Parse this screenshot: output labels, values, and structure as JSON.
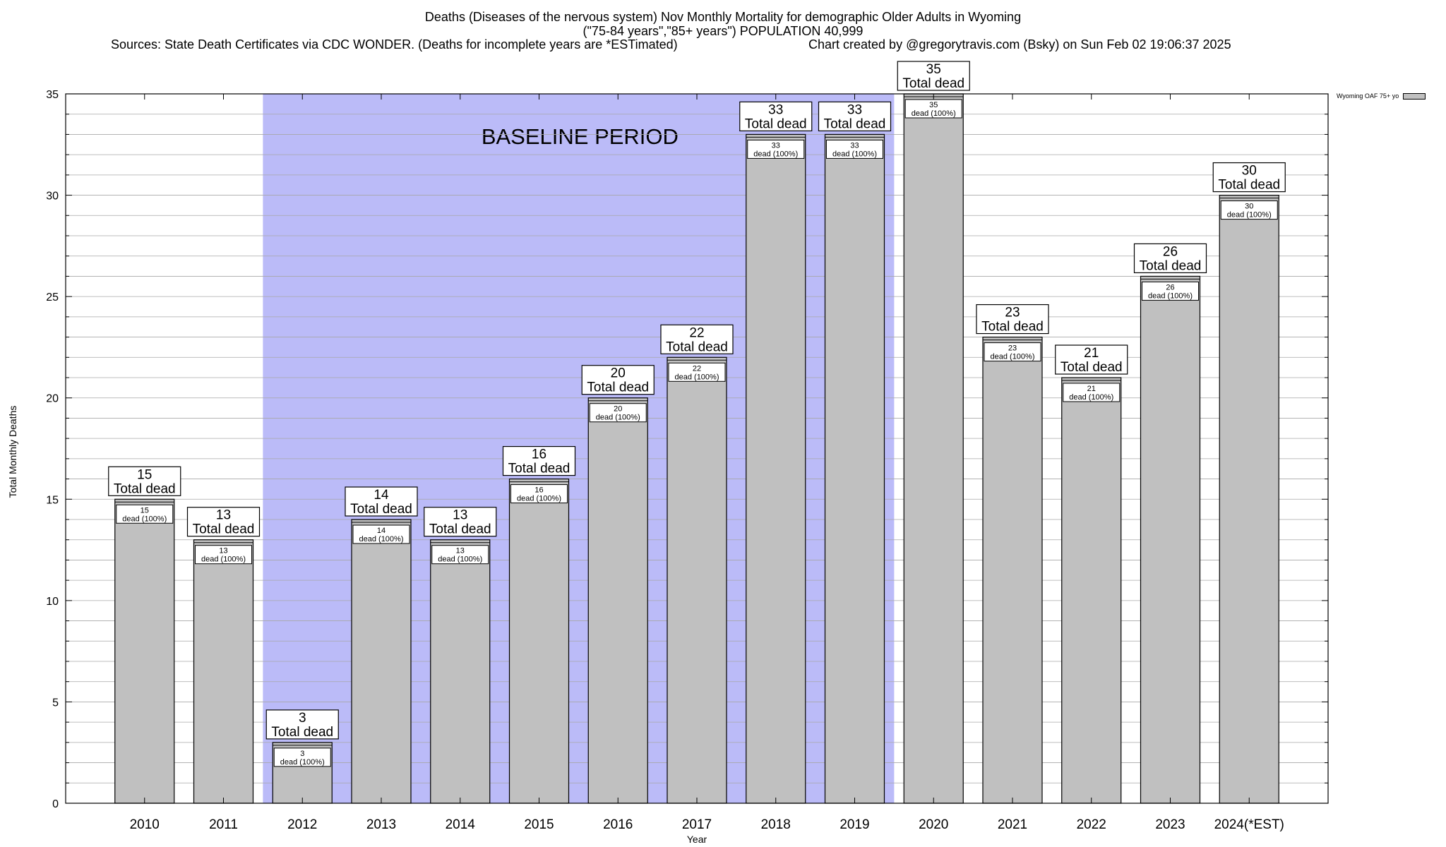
{
  "titles": {
    "line1": "Deaths (Diseases of the nervous system) Nov Monthly Mortality for demographic Older Adults in Wyoming",
    "line2": "(\"75-84 years\",\"85+ years\") POPULATION 40,999",
    "sources": "Sources: State Death Certificates via CDC WONDER. (Deaths for incomplete years are *ESTimated)",
    "credit": "Chart created by @gregorytravis.com (Bsky) on Sun Feb 02 19:06:37 2025"
  },
  "chart_data": {
    "type": "bar",
    "categories": [
      "2010",
      "2011",
      "2012",
      "2013",
      "2014",
      "2015",
      "2016",
      "2017",
      "2018",
      "2019",
      "2020",
      "2021",
      "2022",
      "2023",
      "2024(*EST)"
    ],
    "series": [
      {
        "name": "Wyoming OAF 75+ yo",
        "values": [
          15,
          13,
          3,
          14,
          13,
          16,
          20,
          22,
          33,
          33,
          35,
          23,
          21,
          26,
          30
        ]
      }
    ],
    "total_label_suffix": "Total dead",
    "inner_label_suffix": "dead (100%)",
    "xlabel": "Year",
    "ylabel": "Total Monthly Deaths",
    "ylim": [
      0,
      35
    ],
    "yticks": [
      0,
      5,
      10,
      15,
      20,
      25,
      30,
      35
    ],
    "grid": true,
    "baseline_period": {
      "label": "BASELINE PERIOD",
      "start": "2012",
      "end": "2019",
      "color": "#bbbbf8"
    },
    "bar_color": "#c0c0c0",
    "legend_position": "top-right"
  }
}
